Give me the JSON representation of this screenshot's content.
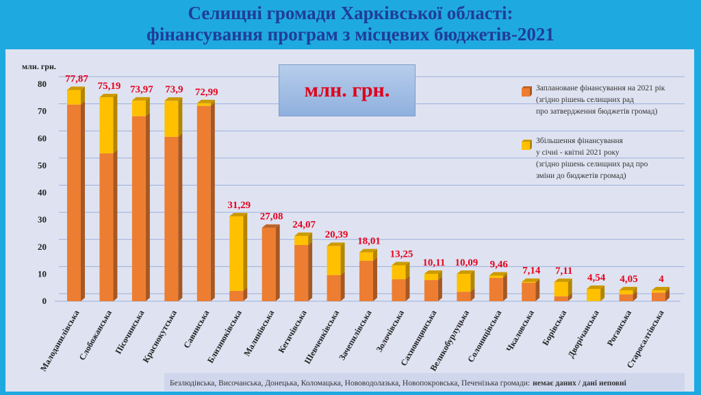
{
  "chart_data": {
    "type": "stacked-bar-3d",
    "title": "Селищні громади Харківської області:\nфінансування програм з місцевих бюджетів-2021",
    "y_label": "млн. грн.",
    "unit_box": "млн. грн.",
    "categories": [
      "Малоданилівська",
      "Слобожанська",
      "Пісочинська",
      "Краснокутська",
      "Савинська",
      "Близнюківська",
      "Малинівська",
      "Кегичівська",
      "Шевченківська",
      "Зачепилівська",
      "Золочівська",
      "Сахновщинська",
      "Великобурлуцька",
      "Солоницівська",
      "Чкаловська",
      "Борівська",
      "Дворічанська",
      "Роганська",
      "Старосалтівська"
    ],
    "series": [
      {
        "name": "Заплановане фінансування на 2021 рік\n(згідно рішень селищних рад\nпро затвердження бюджетів громад)",
        "color": "#ed7d31",
        "values": [
          72.5,
          54.5,
          68.2,
          60.6,
          72,
          3.8,
          27.08,
          20.7,
          9.6,
          14.9,
          8.1,
          7.8,
          3.5,
          8.6,
          6.8,
          1.8,
          0,
          2.5,
          3.2
        ]
      },
      {
        "name": "Збільшення фінансування\nу січні - квітні 2021 року\n(згідно рішень селищних рад про\nзміни до бюджетів громад)",
        "color": "#ffc000",
        "values": [
          5.37,
          20.69,
          5.77,
          13.3,
          0.99,
          27.49,
          0,
          3.37,
          10.79,
          3.11,
          5.15,
          2.31,
          6.59,
          0.86,
          0.34,
          5.31,
          4.54,
          1.55,
          0.8
        ]
      }
    ],
    "totals": [
      77.87,
      75.19,
      73.97,
      73.9,
      72.99,
      31.29,
      27.08,
      24.07,
      20.39,
      18.01,
      13.25,
      10.11,
      10.09,
      9.46,
      7.14,
      7.11,
      4.54,
      4.05,
      4
    ],
    "total_labels": [
      "77,87",
      "75,19",
      "73,97",
      "73,9",
      "72,99",
      "31,29",
      "27,08",
      "24,07",
      "20,39",
      "18,01",
      "13,25",
      "10,11",
      "10,09",
      "9,46",
      "7,14",
      "7,11",
      "4,54",
      "4,05",
      "4"
    ],
    "ylim": [
      0,
      80
    ],
    "yticks": [
      0,
      10,
      20,
      30,
      40,
      50,
      60,
      70,
      80
    ],
    "grid": true,
    "note": {
      "text": "Безлюдівська, Височанська, Донецька, Коломацька, Нововодолазька, Новопокровська, Печенізька громади:",
      "bold": "немає даних / дані неповні"
    }
  }
}
